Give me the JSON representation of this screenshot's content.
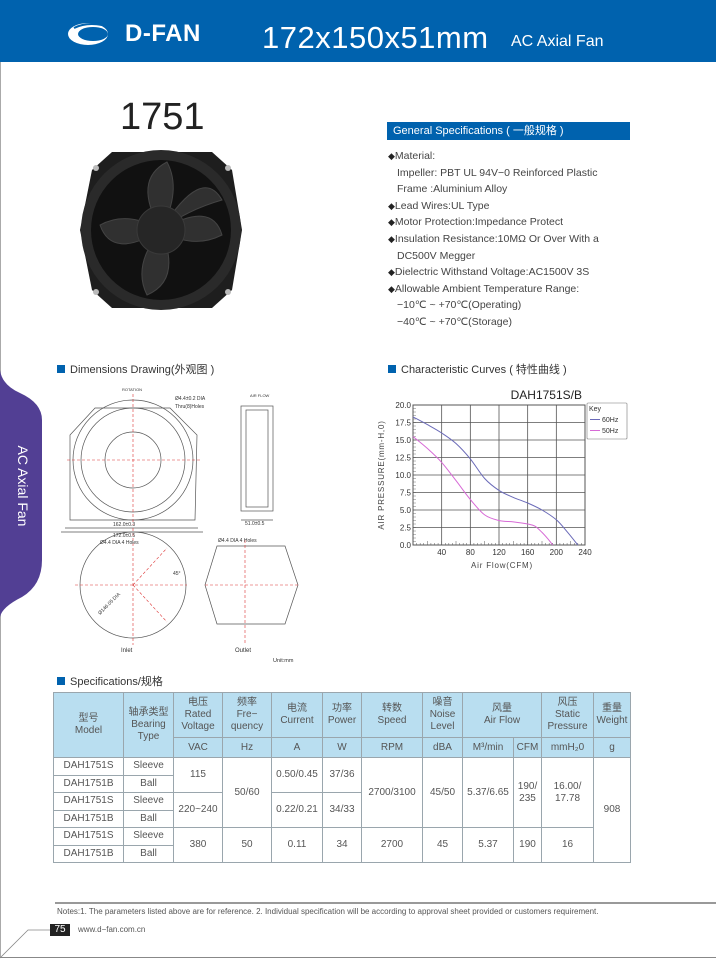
{
  "header": {
    "brand": "D-FAN",
    "title": "172x150x51mm",
    "subtitle": "AC Axial Fan",
    "brand_color": "#0062ae"
  },
  "model_number": "1751",
  "general_specs": {
    "heading": "General Specifications ( 一般规格 )",
    "lines": [
      {
        "bullet": true,
        "text": "Material:"
      },
      {
        "bullet": false,
        "text": "Impeller: PBT UL 94V−0 Reinforced Plastic"
      },
      {
        "bullet": false,
        "text": "Frame :Aluminium Alloy"
      },
      {
        "bullet": true,
        "text": "Lead Wires:UL Type"
      },
      {
        "bullet": true,
        "text": "Motor Protection:Impedance Protect"
      },
      {
        "bullet": true,
        "text": "Insulation Resistance:10MΩ  Or Over With a"
      },
      {
        "bullet": false,
        "text": "DC500V Megger"
      },
      {
        "bullet": true,
        "text": "Dielectric Withstand Voltage:AC1500V 3S"
      },
      {
        "bullet": true,
        "text": "Allowable Ambient Temperature Range:"
      },
      {
        "bullet": false,
        "text": "−10℃ ~ +70℃(Operating)"
      },
      {
        "bullet": false,
        "text": "−40℃ ~ +70℃(Storage)"
      }
    ]
  },
  "side_tab": {
    "label": "AC Axial Fan",
    "color": "#523f94"
  },
  "dimensions": {
    "heading": "Dimensions Drawing(外观图 )",
    "rotation": "ROTATION",
    "airflow": "AIR FLOW",
    "holes_top": "Ø4.4±0.2  DIA",
    "holes_top2": "Thru(8)Holes",
    "dim1": "162.0±0.3",
    "dim2": "172.0±0.5",
    "depth": "51.0±0.5",
    "inlet_holes": "Ø4.4  DIA  4  Holes",
    "outlet_holes": "Ø4.4  DIA  4  Holes",
    "dia": "Ø146.05  DIA",
    "angle": "45°",
    "inlet": "Inlet",
    "outlet": "Outlet",
    "unit": "Unit:mm"
  },
  "curves": {
    "heading": "Characteristic Curves ( 特性曲线 )"
  },
  "chart_data": {
    "type": "line",
    "title": "DAH1751S/B",
    "xlabel": "Air Flow(CFM)",
    "ylabel": "AIR PRESSURE(mm-H,0)",
    "xlim": [
      0,
      240
    ],
    "ylim": [
      0,
      20
    ],
    "xticks": [
      "40",
      "80",
      "120",
      "160",
      "200",
      "240"
    ],
    "yticks": [
      "0.0",
      "2.5",
      "5.0",
      "7.5",
      "10.0",
      "12.5",
      "15.0",
      "17.5",
      "20.0"
    ],
    "grid": true,
    "legend_title": "Key",
    "legend_position": "right",
    "series": [
      {
        "name": "60Hz",
        "color": "#6a6ab8",
        "x": [
          0,
          20,
          40,
          60,
          80,
          100,
          120,
          140,
          160,
          180,
          200,
          215,
          230
        ],
        "y": [
          18.3,
          17.2,
          16.0,
          14.5,
          12.3,
          9.5,
          7.8,
          6.8,
          6.0,
          5.0,
          3.6,
          1.9,
          0
        ]
      },
      {
        "name": "50Hz",
        "color": "#d76ad6",
        "x": [
          0,
          20,
          40,
          60,
          80,
          100,
          120,
          140,
          160,
          170,
          180,
          188,
          195
        ],
        "y": [
          15.5,
          13.8,
          11.8,
          9.2,
          6.5,
          4.3,
          3.5,
          3.3,
          3.0,
          2.7,
          1.8,
          0.9,
          0
        ]
      }
    ]
  },
  "specifications": {
    "heading": "Specifications/规格",
    "headers": {
      "model": [
        "型号",
        "Model"
      ],
      "bearing": [
        "轴承类型",
        "Bearing",
        "Type"
      ],
      "voltage": [
        "电压",
        "Rated",
        "Voltage"
      ],
      "freq": [
        "频率",
        "Fre−",
        "quency"
      ],
      "current": [
        "电流",
        "Current"
      ],
      "power": [
        "功率",
        "Power"
      ],
      "speed": [
        "转数",
        "Speed"
      ],
      "noise": [
        "噪音",
        "Noise",
        "Level"
      ],
      "airflow": [
        "风量",
        "Air Flow"
      ],
      "pressure": [
        "风压",
        "Static",
        "Pressure"
      ],
      "weight": [
        "重量",
        "Weight"
      ]
    },
    "units": [
      "VAC",
      "Hz",
      "A",
      "W",
      "RPM",
      "dBA",
      "M³/min",
      "CFM",
      "mmH₂0",
      "g"
    ],
    "models": [
      "DAH1751S",
      "DAH1751B",
      "DAH1751S",
      "DAH1751B",
      "DAH1751S",
      "DAH1751B"
    ],
    "bearings": [
      "Sleeve",
      "Ball",
      "Sleeve",
      "Ball",
      "Sleeve",
      "Ball"
    ],
    "group1": {
      "v115": "115",
      "v220": "220~240",
      "freq": "50/60",
      "cur1": "0.50/0.45",
      "pow1": "37/36",
      "cur2": "0.22/0.21",
      "pow2": "34/33",
      "speed": "2700/3100",
      "noise": "45/50",
      "m3": "5.37/6.65",
      "cfm": "190/ 235",
      "pressure": "16.00/ 17.78"
    },
    "group2": {
      "v": "380",
      "freq": "50",
      "cur": "0.11",
      "pow": "34",
      "speed": "2700",
      "noise": "45",
      "m3": "5.37",
      "cfm": "190",
      "pressure": "16"
    },
    "weight": "908"
  },
  "footer": {
    "notes": "Notes:1. The parameters listed above are for reference.   2. Individual specification will be according to approval sheet provided or customers requirement.",
    "page": "75",
    "url": "www.d−fan.com.cn"
  }
}
